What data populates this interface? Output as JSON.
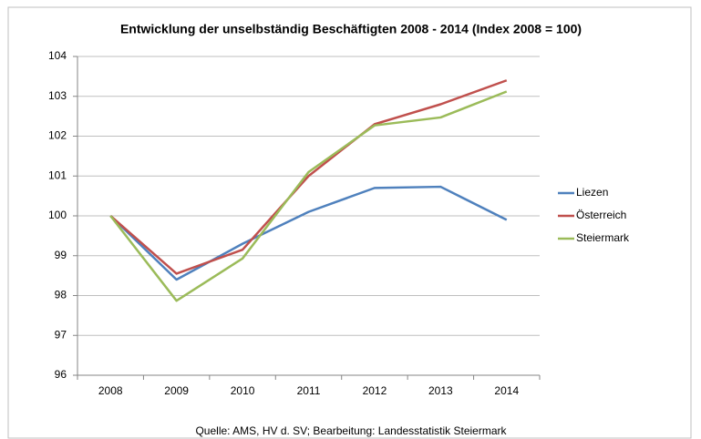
{
  "chart_data": {
    "type": "line",
    "title": "Entwicklung der unselbständig Beschäftigten 2008 - 2014 (Index 2008 = 100)",
    "categories": [
      "2008",
      "2009",
      "2010",
      "2011",
      "2012",
      "2013",
      "2014"
    ],
    "series": [
      {
        "name": "Liezen",
        "color": "#4f81bd",
        "values": [
          100,
          98.4,
          99.3,
          100.1,
          100.7,
          100.73,
          99.9
        ]
      },
      {
        "name": "Österreich",
        "color": "#c0504d",
        "values": [
          100,
          98.55,
          99.15,
          101.0,
          102.3,
          102.8,
          103.4
        ]
      },
      {
        "name": "Steiermark",
        "color": "#9bbb59",
        "values": [
          100,
          97.87,
          98.93,
          101.1,
          102.27,
          102.47,
          103.12
        ]
      }
    ],
    "ylim": [
      96,
      104
    ],
    "yticks": [
      96,
      97,
      98,
      99,
      100,
      101,
      102,
      103,
      104
    ],
    "grid": true,
    "legend": "right",
    "source": "Quelle: AMS, HV d. SV; Bearbeitung: Landesstatistik Steiermark"
  }
}
